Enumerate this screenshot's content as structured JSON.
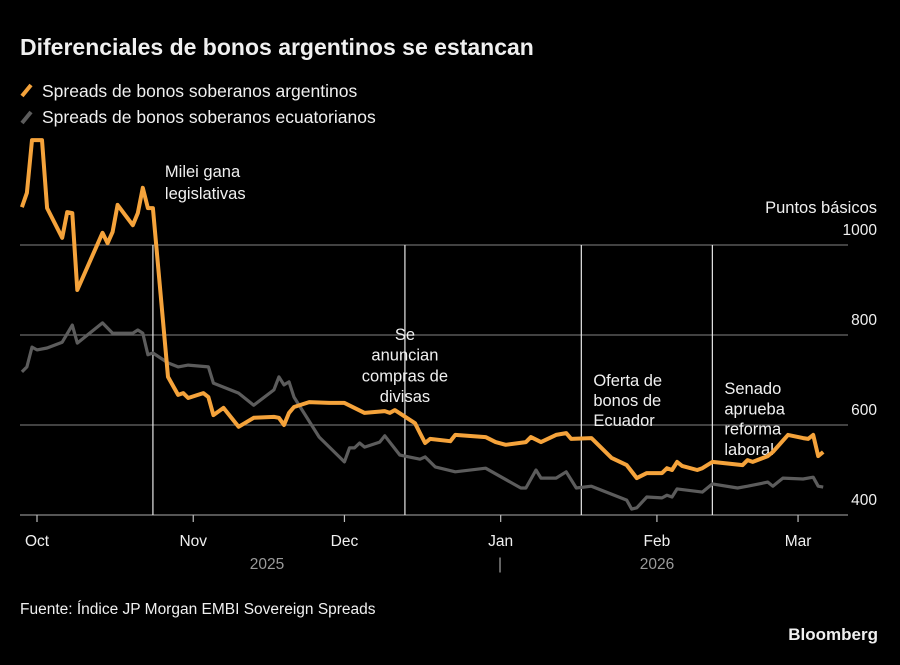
{
  "chart_data": {
    "type": "line",
    "title": "Diferenciales de bonos argentinos se estancan",
    "ylabel": "Puntos básicos",
    "ylim": [
      400,
      1250
    ],
    "yticks": [
      "400",
      "600",
      "800",
      "1000"
    ],
    "ytick_values": [
      400,
      600,
      800,
      1000
    ],
    "xlim": [
      "2025-09-28",
      "2026-03-16"
    ],
    "xticks": [
      {
        "label": "Oct",
        "date": "2025-10-01"
      },
      {
        "label": "Nov",
        "date": "2025-11-01"
      },
      {
        "label": "Dec",
        "date": "2025-12-01"
      },
      {
        "label": "Jan",
        "date": "2026-01-01"
      },
      {
        "label": "Feb",
        "date": "2026-02-01"
      },
      {
        "label": "Mar",
        "date": "2026-03-01"
      }
    ],
    "year_labels": [
      "2025",
      "|",
      "2026"
    ],
    "grid": true,
    "legend_position": "top-left",
    "series": [
      {
        "name": "Spreads de bonos soberanos argentinos",
        "color": "#f5a33b",
        "points": [
          [
            "2025-09-28",
            1084
          ],
          [
            "2025-09-29",
            1116
          ],
          [
            "2025-09-30",
            1233
          ],
          [
            "2025-10-02",
            1233
          ],
          [
            "2025-10-03",
            1082
          ],
          [
            "2025-10-06",
            1016
          ],
          [
            "2025-10-07",
            1073
          ],
          [
            "2025-10-08",
            1071
          ],
          [
            "2025-10-09",
            900
          ],
          [
            "2025-10-14",
            1027
          ],
          [
            "2025-10-15",
            1004
          ],
          [
            "2025-10-16",
            1029
          ],
          [
            "2025-10-17",
            1089
          ],
          [
            "2025-10-20",
            1044
          ],
          [
            "2025-10-21",
            1071
          ],
          [
            "2025-10-22",
            1127
          ],
          [
            "2025-10-23",
            1082
          ],
          [
            "2025-10-24",
            1082
          ],
          [
            "2025-10-27",
            707
          ],
          [
            "2025-10-29",
            667
          ],
          [
            "2025-10-30",
            671
          ],
          [
            "2025-10-31",
            660
          ],
          [
            "2025-11-03",
            671
          ],
          [
            "2025-11-04",
            662
          ],
          [
            "2025-11-05",
            622
          ],
          [
            "2025-11-07",
            638
          ],
          [
            "2025-11-10",
            596
          ],
          [
            "2025-11-13",
            616
          ],
          [
            "2025-11-17",
            618
          ],
          [
            "2025-11-18",
            616
          ],
          [
            "2025-11-19",
            600
          ],
          [
            "2025-11-20",
            627
          ],
          [
            "2025-11-21",
            640
          ],
          [
            "2025-11-24",
            651
          ],
          [
            "2025-11-28",
            649
          ],
          [
            "2025-12-01",
            649
          ],
          [
            "2025-12-05",
            627
          ],
          [
            "2025-12-09",
            631
          ],
          [
            "2025-12-10",
            627
          ],
          [
            "2025-12-11",
            633
          ],
          [
            "2025-12-15",
            604
          ],
          [
            "2025-12-16",
            582
          ],
          [
            "2025-12-17",
            560
          ],
          [
            "2025-12-18",
            569
          ],
          [
            "2025-12-22",
            564
          ],
          [
            "2025-12-23",
            578
          ],
          [
            "2025-12-29",
            573
          ],
          [
            "2025-12-31",
            562
          ],
          [
            "2026-01-02",
            556
          ],
          [
            "2026-01-06",
            562
          ],
          [
            "2026-01-07",
            573
          ],
          [
            "2026-01-09",
            562
          ],
          [
            "2026-01-12",
            578
          ],
          [
            "2026-01-14",
            582
          ],
          [
            "2026-01-15",
            569
          ],
          [
            "2026-01-19",
            571
          ],
          [
            "2026-01-23",
            527
          ],
          [
            "2026-01-26",
            511
          ],
          [
            "2026-01-28",
            482
          ],
          [
            "2026-01-30",
            493
          ],
          [
            "2026-02-02",
            493
          ],
          [
            "2026-02-03",
            504
          ],
          [
            "2026-02-04",
            500
          ],
          [
            "2026-02-05",
            518
          ],
          [
            "2026-02-06",
            509
          ],
          [
            "2026-02-09",
            500
          ],
          [
            "2026-02-10",
            504
          ],
          [
            "2026-02-12",
            518
          ],
          [
            "2026-02-18",
            511
          ],
          [
            "2026-02-19",
            522
          ],
          [
            "2026-02-20",
            518
          ],
          [
            "2026-02-23",
            531
          ],
          [
            "2026-02-24",
            540
          ],
          [
            "2026-02-27",
            578
          ],
          [
            "2026-03-02",
            571
          ],
          [
            "2026-03-03",
            569
          ],
          [
            "2026-03-04",
            578
          ],
          [
            "2026-03-05",
            531
          ],
          [
            "2026-03-06",
            540
          ]
        ]
      },
      {
        "name": "Spreads de bonos soberanos ecuatorianos",
        "color": "#5c5c5c",
        "points": [
          [
            "2025-09-28",
            718
          ],
          [
            "2025-09-29",
            729
          ],
          [
            "2025-09-30",
            773
          ],
          [
            "2025-10-01",
            767
          ],
          [
            "2025-10-03",
            771
          ],
          [
            "2025-10-06",
            784
          ],
          [
            "2025-10-08",
            822
          ],
          [
            "2025-10-09",
            782
          ],
          [
            "2025-10-14",
            827
          ],
          [
            "2025-10-16",
            804
          ],
          [
            "2025-10-20",
            804
          ],
          [
            "2025-10-21",
            811
          ],
          [
            "2025-10-22",
            804
          ],
          [
            "2025-10-23",
            756
          ],
          [
            "2025-10-24",
            760
          ],
          [
            "2025-10-27",
            738
          ],
          [
            "2025-10-29",
            729
          ],
          [
            "2025-10-31",
            733
          ],
          [
            "2025-11-04",
            729
          ],
          [
            "2025-11-05",
            693
          ],
          [
            "2025-11-10",
            671
          ],
          [
            "2025-11-13",
            644
          ],
          [
            "2025-11-17",
            678
          ],
          [
            "2025-11-18",
            707
          ],
          [
            "2025-11-19",
            689
          ],
          [
            "2025-11-20",
            696
          ],
          [
            "2025-11-21",
            662
          ],
          [
            "2025-11-26",
            573
          ],
          [
            "2025-12-01",
            518
          ],
          [
            "2025-12-02",
            549
          ],
          [
            "2025-12-03",
            549
          ],
          [
            "2025-12-04",
            560
          ],
          [
            "2025-12-05",
            551
          ],
          [
            "2025-12-08",
            562
          ],
          [
            "2025-12-09",
            576
          ],
          [
            "2025-12-12",
            533
          ],
          [
            "2025-12-16",
            524
          ],
          [
            "2025-12-17",
            529
          ],
          [
            "2025-12-19",
            507
          ],
          [
            "2025-12-23",
            496
          ],
          [
            "2025-12-29",
            504
          ],
          [
            "2026-01-05",
            460
          ],
          [
            "2026-01-06",
            460
          ],
          [
            "2026-01-08",
            500
          ],
          [
            "2026-01-09",
            482
          ],
          [
            "2026-01-12",
            482
          ],
          [
            "2026-01-14",
            496
          ],
          [
            "2026-01-16",
            460
          ],
          [
            "2026-01-19",
            464
          ],
          [
            "2026-01-26",
            433
          ],
          [
            "2026-01-27",
            413
          ],
          [
            "2026-01-28",
            416
          ],
          [
            "2026-01-30",
            440
          ],
          [
            "2026-02-02",
            438
          ],
          [
            "2026-02-03",
            444
          ],
          [
            "2026-02-04",
            440
          ],
          [
            "2026-02-05",
            458
          ],
          [
            "2026-02-10",
            451
          ],
          [
            "2026-02-12",
            469
          ],
          [
            "2026-02-17",
            460
          ],
          [
            "2026-02-19",
            464
          ],
          [
            "2026-02-23",
            473
          ],
          [
            "2026-02-24",
            464
          ],
          [
            "2026-02-26",
            482
          ],
          [
            "2026-03-02",
            480
          ],
          [
            "2026-03-04",
            484
          ],
          [
            "2026-03-05",
            464
          ],
          [
            "2026-03-06",
            462
          ]
        ]
      }
    ],
    "annotations": [
      {
        "date": "2025-10-24",
        "lines": [
          "Milei gana",
          "legislativas"
        ]
      },
      {
        "date": "2025-12-13",
        "lines": [
          "Se",
          "anuncian",
          "compras de",
          "divisas"
        ]
      },
      {
        "date": "2026-01-17",
        "lines": [
          "Oferta de",
          "bonos de",
          "Ecuador"
        ]
      },
      {
        "date": "2026-02-12",
        "lines": [
          "Senado",
          "aprueba",
          "reforma",
          "laboral"
        ]
      }
    ]
  },
  "source": "Fuente: Índice JP Morgan EMBI Sovereign Spreads",
  "brand": "Bloomberg"
}
